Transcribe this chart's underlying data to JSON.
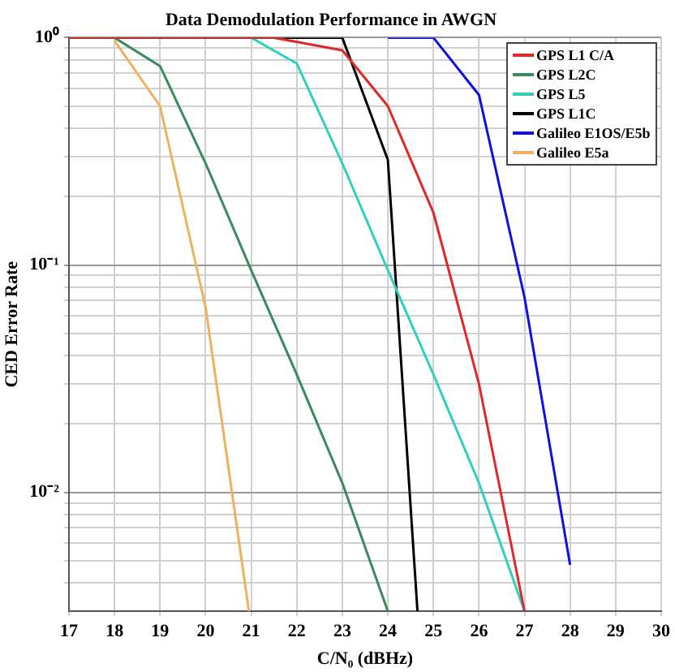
{
  "chart_data": {
    "type": "line",
    "title": "Data Demodulation Performance in AWGN",
    "xlabel": "C/N₀ (dBHz)",
    "ylabel": "CED Error Rate",
    "log": "y",
    "grid": true,
    "legend": "top right",
    "marker": "none",
    "line_style": "solid",
    "xlim": [
      17,
      30
    ],
    "xticks": [
      17,
      18,
      19,
      20,
      21,
      22,
      23,
      24,
      25,
      26,
      27,
      28,
      29,
      30
    ],
    "ylim": [
      0.003,
      1
    ],
    "yticks": [
      {
        "value": 0.004,
        "label": null
      },
      {
        "value": 0.005,
        "label": null
      },
      {
        "value": 0.006,
        "label": null
      },
      {
        "value": 0.007,
        "label": null
      },
      {
        "value": 0.008,
        "label": null
      },
      {
        "value": 0.009,
        "label": null
      },
      {
        "value": 0.01,
        "label": "10⁻²"
      },
      {
        "value": 0.02,
        "label": null
      },
      {
        "value": 0.03,
        "label": null
      },
      {
        "value": 0.04,
        "label": null
      },
      {
        "value": 0.05,
        "label": null
      },
      {
        "value": 0.06,
        "label": null
      },
      {
        "value": 0.07,
        "label": null
      },
      {
        "value": 0.08,
        "label": null
      },
      {
        "value": 0.09,
        "label": null
      },
      {
        "value": 0.1,
        "label": "10⁻¹"
      },
      {
        "value": 0.2,
        "label": null
      },
      {
        "value": 0.3,
        "label": null
      },
      {
        "value": 0.4,
        "label": null
      },
      {
        "value": 0.5,
        "label": null
      },
      {
        "value": 0.6,
        "label": null
      },
      {
        "value": 0.7,
        "label": null
      },
      {
        "value": 0.8,
        "label": null
      },
      {
        "value": 0.9,
        "label": null
      },
      {
        "value": 1,
        "label": "10⁰"
      }
    ],
    "series": [
      {
        "name": "GPS L1 C/A",
        "color": "#e02828",
        "x": [
          17,
          21.5,
          23,
          24,
          25,
          26,
          27
        ],
        "values": [
          1,
          1,
          0.88,
          0.5,
          0.17,
          0.03,
          0.003
        ]
      },
      {
        "name": "GPS L2C",
        "color": "#3a8a5e",
        "x": [
          17,
          18,
          19,
          20,
          21,
          22,
          23,
          24
        ],
        "values": [
          1,
          1,
          0.75,
          0.28,
          0.095,
          0.033,
          0.011,
          0.003
        ]
      },
      {
        "name": "GPS L5",
        "color": "#30d0c0",
        "x": [
          21,
          22,
          23,
          24,
          25,
          26,
          27
        ],
        "values": [
          1,
          0.77,
          0.28,
          0.095,
          0.033,
          0.011,
          0.003
        ]
      },
      {
        "name": "GPS L1C",
        "color": "#000000",
        "x": [
          17,
          23,
          24,
          24.65
        ],
        "values": [
          1,
          1,
          0.29,
          0.003
        ]
      },
      {
        "name": "Galileo E1OS/E5b",
        "color": "#1010e0",
        "x": [
          24,
          25,
          26,
          27,
          28
        ],
        "values": [
          1,
          1,
          0.56,
          0.072,
          0.0048
        ]
      },
      {
        "name": "Galileo E5a",
        "color": "#f0b060",
        "x": [
          18,
          19,
          20,
          20.95
        ],
        "values": [
          0.97,
          0.5,
          0.065,
          0.003
        ]
      }
    ]
  }
}
